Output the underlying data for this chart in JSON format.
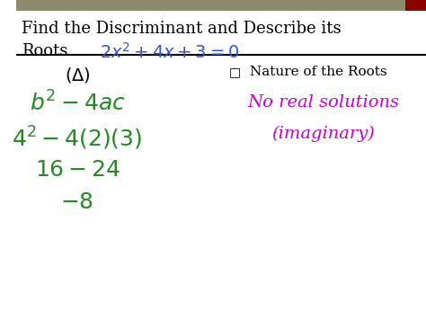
{
  "title_line1": "Find the Discriminant and Describe its",
  "title_line2": "Roots",
  "equation": "2x^2 + 4x + 3 = 0",
  "delta_label": "(Δ)",
  "formula": "b^2 - 4ac",
  "step1": "4^2 - 4(2)(3)",
  "step2": "16 - 24",
  "step3": "-8",
  "nature_label": "Nature of the Roots",
  "nature_result1": "No real solutions",
  "nature_result2": "(imaginary)",
  "color_title": "#000000",
  "color_equation": "#3355cc",
  "color_green": "#228B22",
  "color_magenta": "#cc00cc",
  "color_header_bg": "#8B8B6B",
  "color_header_accent": "#8B0000",
  "bg_color": "#ffffff",
  "separator_color": "#000000"
}
